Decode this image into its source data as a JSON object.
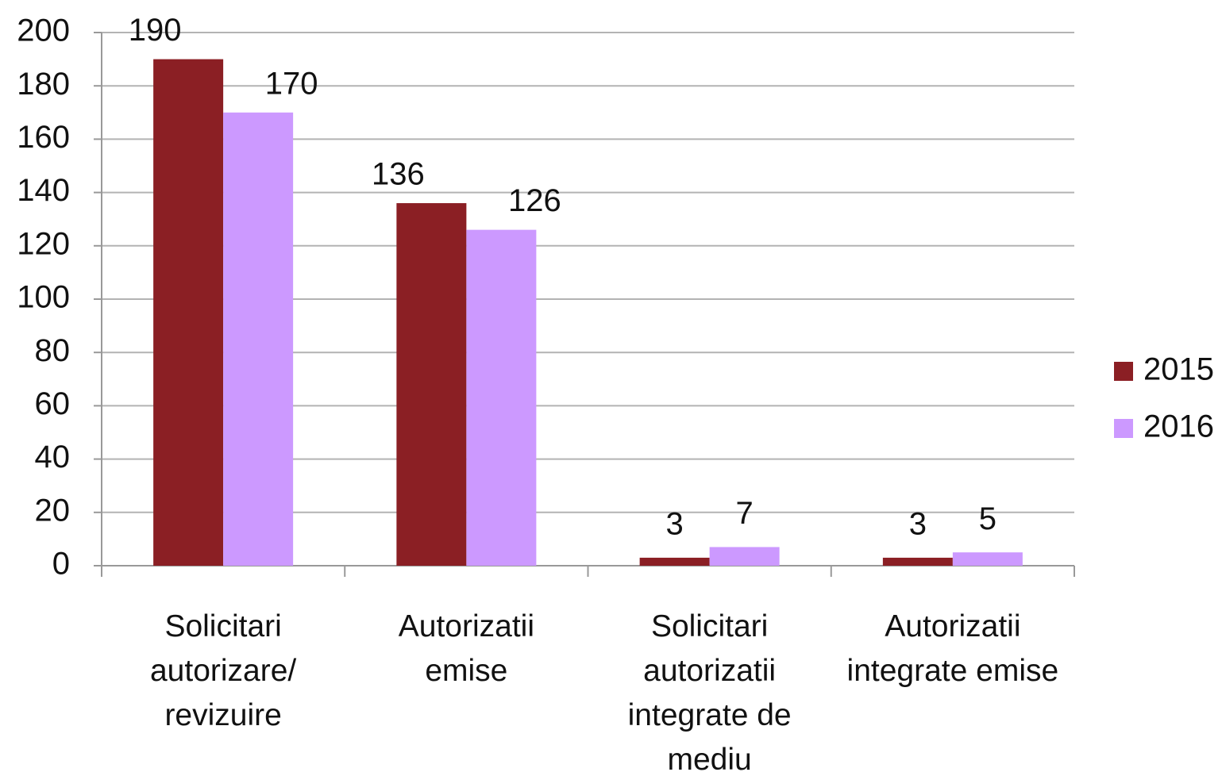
{
  "chart_data": {
    "type": "bar",
    "categories": [
      "Solicitari autorizare/ revizuire",
      "Autorizatii emise",
      "Solicitari autorizatii integrate de mediu",
      "Autorizatii integrate emise"
    ],
    "series": [
      {
        "name": "2015",
        "color": "#8b1f24",
        "values": [
          190,
          136,
          3,
          3
        ]
      },
      {
        "name": "2016",
        "color": "#cc99ff",
        "values": [
          170,
          126,
          7,
          5
        ]
      }
    ],
    "ylim": [
      0,
      200
    ],
    "yticks": [
      0,
      20,
      40,
      60,
      80,
      100,
      120,
      140,
      160,
      180,
      200
    ],
    "grid": true,
    "legend": "right"
  }
}
